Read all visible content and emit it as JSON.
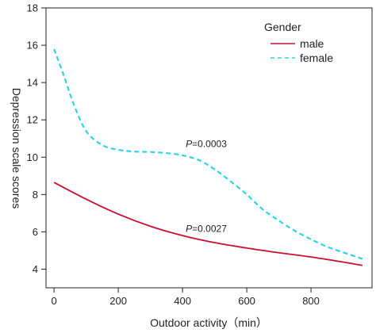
{
  "chart_data": {
    "type": "line",
    "title": "",
    "xlabel": "Outdoor activity（min）",
    "ylabel": "Depression scale scores",
    "xlim": [
      -25,
      990
    ],
    "ylim": [
      3,
      18
    ],
    "xticks": [
      0,
      200,
      400,
      600,
      800
    ],
    "yticks": [
      4,
      6,
      8,
      10,
      12,
      14,
      16,
      18
    ],
    "grid": false,
    "legend": {
      "title": "Gender",
      "placement": "top-right"
    },
    "colors": {
      "male": "#c8102e",
      "female": "#2ed3e6"
    },
    "series": [
      {
        "name": "male",
        "style": "solid",
        "x": [
          0,
          100,
          200,
          300,
          400,
          500,
          600,
          700,
          800,
          900,
          960
        ],
        "y": [
          8.65,
          7.75,
          6.95,
          6.3,
          5.8,
          5.42,
          5.13,
          4.88,
          4.65,
          4.38,
          4.2
        ]
      },
      {
        "name": "female",
        "style": "dashed",
        "x": [
          0,
          30,
          60,
          100,
          150,
          200,
          250,
          300,
          350,
          400,
          450,
          500,
          550,
          600,
          650,
          700,
          750,
          800,
          850,
          900,
          960
        ],
        "y": [
          15.8,
          14.4,
          12.9,
          11.4,
          10.65,
          10.4,
          10.3,
          10.28,
          10.22,
          10.1,
          9.85,
          9.35,
          8.7,
          8.0,
          7.2,
          6.6,
          6.05,
          5.6,
          5.2,
          4.9,
          4.55
        ]
      }
    ],
    "annotations": [
      {
        "p_label": "P",
        "text": "=0.0003",
        "x": 410,
        "y": 10.55
      },
      {
        "p_label": "P",
        "text": "=0.0027",
        "x": 410,
        "y": 6.0
      }
    ]
  }
}
